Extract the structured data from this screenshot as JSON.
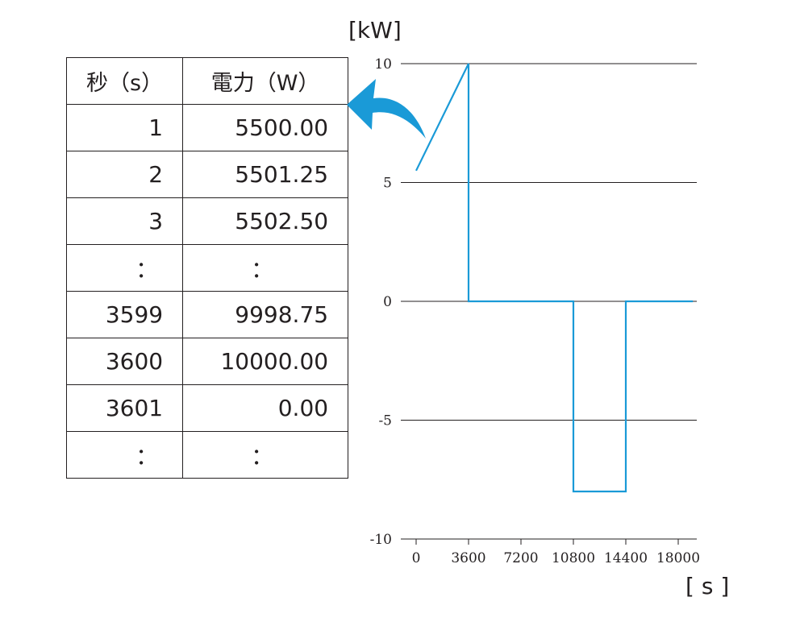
{
  "table": {
    "headers": [
      "秒（s）",
      "電力（W）"
    ],
    "rows": [
      [
        "1",
        "5500.00"
      ],
      [
        "2",
        "5501.25"
      ],
      [
        "3",
        "5502.50"
      ],
      [
        "：",
        "："
      ],
      [
        "3599",
        "9998.75"
      ],
      [
        "3600",
        "10000.00"
      ],
      [
        "3601",
        "0.00"
      ],
      [
        "：",
        "："
      ]
    ]
  },
  "arrow": {
    "color": "#1a9ad7"
  },
  "chart_data": {
    "type": "line",
    "title": "",
    "ylabel": "[kW]",
    "xlabel": "[ s ]",
    "xlim": [
      -1000,
      19000
    ],
    "ylim": [
      -10,
      10
    ],
    "x_ticks": [
      0,
      3600,
      7200,
      10800,
      14400,
      18000
    ],
    "y_ticks": [
      10,
      5,
      0,
      -5,
      -10
    ],
    "grid": "horizontal",
    "line_color": "#1a9ad7",
    "series": [
      {
        "x": [
          0,
          3600,
          3600,
          10800,
          10800,
          14400,
          14400,
          19000
        ],
        "y": [
          5.5,
          10,
          0,
          0,
          -8,
          -8,
          0,
          0
        ]
      }
    ]
  }
}
